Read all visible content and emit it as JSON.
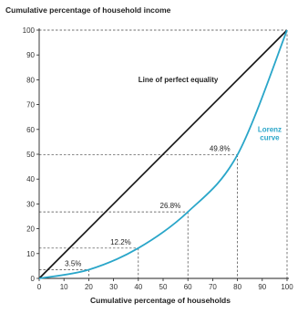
{
  "chart_data": {
    "type": "line",
    "ylabel": "Cumulative percentage of household income",
    "xlabel": "Cumulative percentage of households",
    "xlim": [
      0,
      100
    ],
    "ylim": [
      0,
      100
    ],
    "x_ticks": [
      0,
      10,
      20,
      30,
      40,
      50,
      60,
      70,
      80,
      90,
      100
    ],
    "y_ticks": [
      0,
      10,
      20,
      30,
      40,
      50,
      60,
      70,
      80,
      90,
      100
    ],
    "grid": false,
    "series": [
      {
        "name": "Line of perfect equality",
        "color": "#111111",
        "x": [
          0,
          100
        ],
        "y": [
          0,
          100
        ]
      },
      {
        "name": "Lorenz curve",
        "color": "#2aa6c9",
        "x": [
          0,
          20,
          40,
          60,
          80,
          100
        ],
        "y": [
          0,
          3.5,
          12.2,
          26.8,
          49.8,
          100
        ]
      }
    ],
    "annotations": [
      {
        "text": "3.5%",
        "x": 20,
        "y": 3.5
      },
      {
        "text": "12.2%",
        "x": 40,
        "y": 12.2
      },
      {
        "text": "26.8%",
        "x": 60,
        "y": 26.8
      },
      {
        "text": "49.8%",
        "x": 80,
        "y": 49.8
      }
    ],
    "lorenz_label": [
      "Lorenz",
      "curve"
    ],
    "equality_label": "Line of perfect equality"
  }
}
